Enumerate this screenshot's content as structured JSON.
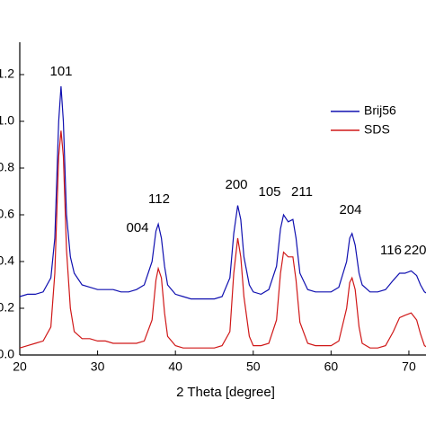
{
  "chart_data": {
    "type": "line",
    "xlabel": "2 Theta [degree]",
    "x": [
      20,
      21,
      22,
      23,
      24,
      24.5,
      25,
      25.3,
      25.6,
      26,
      26.5,
      27,
      28,
      29,
      30,
      31,
      32,
      33,
      34,
      35,
      36,
      37,
      37.5,
      37.8,
      38.2,
      38.6,
      39,
      40,
      41,
      42,
      43,
      44,
      45,
      46,
      47,
      47.5,
      48,
      48.4,
      48.8,
      49.5,
      50,
      51,
      52,
      53,
      53.5,
      53.9,
      54.5,
      55.1,
      55.5,
      56,
      57,
      58,
      59,
      60,
      61,
      62,
      62.4,
      62.7,
      63.1,
      63.6,
      64,
      65,
      66,
      67,
      68,
      68.8,
      69.5,
      70.3,
      71,
      71.5,
      72,
      72.5
    ],
    "series": [
      {
        "name": "Brij56",
        "color": "#1010b0",
        "values": [
          0.25,
          0.26,
          0.26,
          0.27,
          0.33,
          0.5,
          1.0,
          1.15,
          1.0,
          0.6,
          0.42,
          0.35,
          0.3,
          0.29,
          0.28,
          0.28,
          0.28,
          0.27,
          0.27,
          0.28,
          0.3,
          0.4,
          0.53,
          0.56,
          0.5,
          0.38,
          0.3,
          0.26,
          0.25,
          0.24,
          0.24,
          0.24,
          0.24,
          0.25,
          0.33,
          0.52,
          0.64,
          0.58,
          0.42,
          0.3,
          0.27,
          0.26,
          0.28,
          0.38,
          0.54,
          0.6,
          0.57,
          0.58,
          0.5,
          0.35,
          0.28,
          0.27,
          0.27,
          0.27,
          0.29,
          0.4,
          0.5,
          0.52,
          0.47,
          0.35,
          0.3,
          0.27,
          0.27,
          0.28,
          0.32,
          0.35,
          0.35,
          0.36,
          0.34,
          0.3,
          0.27,
          0.26
        ]
      },
      {
        "name": "SDS",
        "color": "#d01818",
        "values": [
          0.03,
          0.04,
          0.05,
          0.06,
          0.12,
          0.35,
          0.85,
          0.96,
          0.85,
          0.45,
          0.2,
          0.1,
          0.07,
          0.07,
          0.06,
          0.06,
          0.05,
          0.05,
          0.05,
          0.05,
          0.06,
          0.15,
          0.32,
          0.37,
          0.33,
          0.18,
          0.08,
          0.04,
          0.03,
          0.03,
          0.03,
          0.03,
          0.03,
          0.04,
          0.1,
          0.35,
          0.5,
          0.42,
          0.25,
          0.08,
          0.04,
          0.04,
          0.05,
          0.15,
          0.35,
          0.44,
          0.42,
          0.42,
          0.32,
          0.14,
          0.05,
          0.04,
          0.04,
          0.04,
          0.06,
          0.2,
          0.31,
          0.33,
          0.28,
          0.12,
          0.05,
          0.03,
          0.03,
          0.04,
          0.1,
          0.16,
          0.17,
          0.18,
          0.15,
          0.09,
          0.04,
          0.03
        ]
      }
    ],
    "annotations": [
      "101",
      "004",
      "112",
      "200",
      "105",
      "211",
      "204",
      "116",
      "220"
    ],
    "xlim": [
      20,
      72.2
    ],
    "ylim": [
      0,
      1.3
    ],
    "xticks": [
      20,
      30,
      40,
      50,
      60,
      70
    ],
    "yticks": [
      {
        "value": 0,
        "label": "0.0"
      },
      0.2,
      0.4,
      0.6,
      0.8,
      {
        "value": 1,
        "label": "1.0"
      },
      1.2
    ],
    "legend": "upper right"
  }
}
